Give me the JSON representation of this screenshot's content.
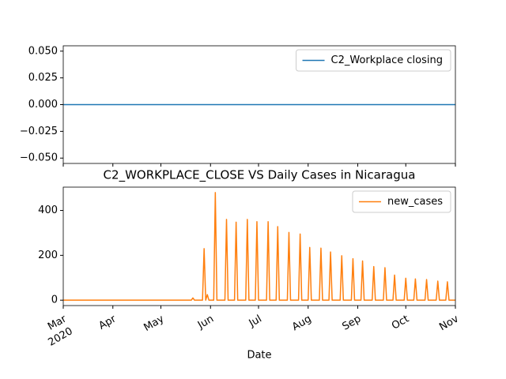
{
  "chart_data": [
    {
      "type": "line",
      "series": [
        {
          "name": "C2_Workplace closing",
          "color": "#1f77b4",
          "x": [
            "2020-03-01",
            "2020-11-01"
          ],
          "values": [
            0,
            0
          ]
        }
      ],
      "xlim": [
        "2020-03-01",
        "2020-11-01"
      ],
      "ylim": [
        -0.055,
        0.055
      ],
      "yticks": [
        {
          "value": 0.05,
          "label": "0.050"
        },
        {
          "value": 0.025,
          "label": "0.025"
        },
        {
          "value": 0,
          "label": "0.000"
        },
        {
          "value": -0.025,
          "label": "−0.025"
        },
        {
          "value": -0.05,
          "label": "−0.050"
        }
      ],
      "legend": "upper right"
    },
    {
      "type": "line",
      "title": "C2_WORKPLACE_CLOSE VS Daily Cases in Nicaragua",
      "xlabel": "Date",
      "x_year_label": "2020",
      "series": [
        {
          "name": "new_cases",
          "color": "#ff7f0e",
          "x": [
            "2020-03-01",
            "2020-05-20",
            "2020-05-21",
            "2020-05-22",
            "2020-05-27",
            "2020-05-28",
            "2020-05-29",
            "2020-05-30",
            "2020-05-31",
            "2020-06-03",
            "2020-06-04",
            "2020-06-05",
            "2020-06-10",
            "2020-06-11",
            "2020-06-12",
            "2020-06-16",
            "2020-06-17",
            "2020-06-18",
            "2020-06-23",
            "2020-06-24",
            "2020-06-25",
            "2020-06-29",
            "2020-06-30",
            "2020-07-01",
            "2020-07-06",
            "2020-07-07",
            "2020-07-08",
            "2020-07-12",
            "2020-07-13",
            "2020-07-14",
            "2020-07-19",
            "2020-07-20",
            "2020-07-21",
            "2020-07-26",
            "2020-07-27",
            "2020-07-28",
            "2020-08-01",
            "2020-08-02",
            "2020-08-03",
            "2020-08-08",
            "2020-08-09",
            "2020-08-10",
            "2020-08-14",
            "2020-08-15",
            "2020-08-16",
            "2020-08-21",
            "2020-08-22",
            "2020-08-23",
            "2020-08-28",
            "2020-08-29",
            "2020-08-30",
            "2020-09-03",
            "2020-09-04",
            "2020-09-05",
            "2020-09-10",
            "2020-09-11",
            "2020-09-12",
            "2020-09-17",
            "2020-09-18",
            "2020-09-19",
            "2020-09-23",
            "2020-09-24",
            "2020-09-25",
            "2020-09-30",
            "2020-10-01",
            "2020-10-02",
            "2020-10-06",
            "2020-10-07",
            "2020-10-08",
            "2020-10-13",
            "2020-10-14",
            "2020-10-15",
            "2020-10-20",
            "2020-10-21",
            "2020-10-22",
            "2020-10-26",
            "2020-10-27",
            "2020-10-28",
            "2020-11-01"
          ],
          "values": [
            0,
            0,
            10,
            0,
            0,
            230,
            0,
            25,
            0,
            0,
            480,
            0,
            0,
            360,
            0,
            0,
            348,
            0,
            0,
            360,
            0,
            0,
            350,
            0,
            0,
            350,
            0,
            0,
            328,
            0,
            0,
            302,
            0,
            0,
            295,
            0,
            0,
            235,
            0,
            0,
            232,
            0,
            0,
            215,
            0,
            0,
            198,
            0,
            0,
            185,
            0,
            0,
            175,
            0,
            0,
            150,
            0,
            0,
            145,
            0,
            0,
            112,
            0,
            0,
            98,
            0,
            0,
            95,
            0,
            0,
            92,
            0,
            0,
            85,
            0,
            0,
            82,
            0,
            0
          ]
        }
      ],
      "xlim": [
        "2020-03-01",
        "2020-11-01"
      ],
      "xticks": [
        {
          "value": "2020-03-01",
          "label": "Mar"
        },
        {
          "value": "2020-04-01",
          "label": "Apr"
        },
        {
          "value": "2020-05-01",
          "label": "May"
        },
        {
          "value": "2020-06-01",
          "label": "Jun"
        },
        {
          "value": "2020-07-01",
          "label": "Jul"
        },
        {
          "value": "2020-08-01",
          "label": "Aug"
        },
        {
          "value": "2020-09-01",
          "label": "Sep"
        },
        {
          "value": "2020-10-01",
          "label": "Oct"
        },
        {
          "value": "2020-11-01",
          "label": "Nov"
        }
      ],
      "ylim": [
        -24,
        504
      ],
      "yticks": [
        0,
        200,
        400
      ],
      "legend": "upper right"
    }
  ]
}
